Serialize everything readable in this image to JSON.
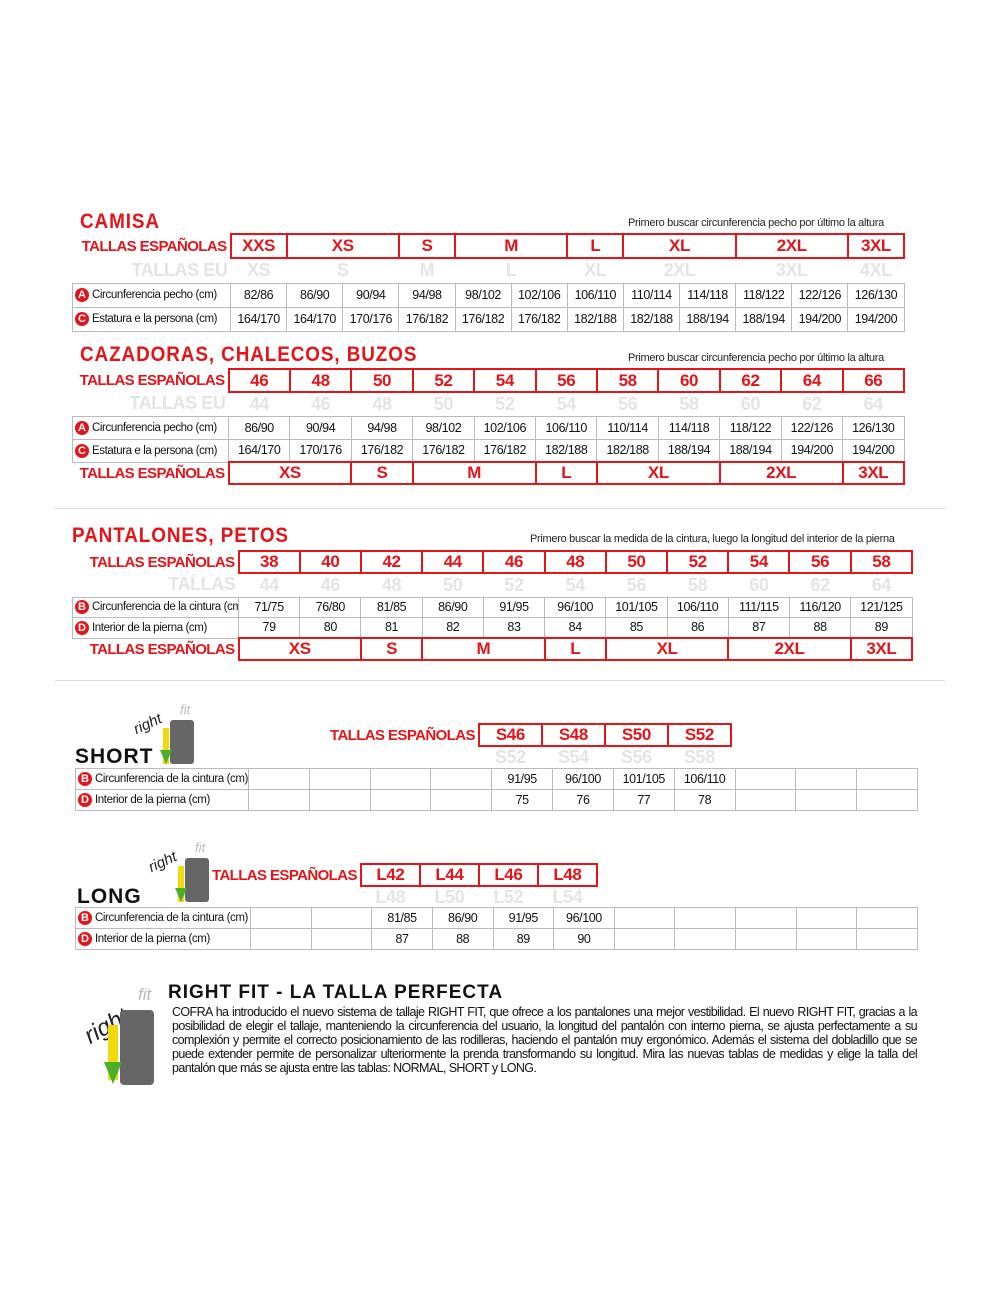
{
  "camisa": {
    "title": "CAMISA",
    "note": "Primero buscar circunferencia pecho por último la altura",
    "rows": [
      {
        "kind": "es",
        "label": "TALLAS ESPAÑOLAS",
        "cells": [
          {
            "t": "XXS",
            "span": 1
          },
          {
            "t": "XS",
            "span": 2
          },
          {
            "t": "S",
            "span": 1
          },
          {
            "t": "M",
            "span": 2
          },
          {
            "t": "L",
            "span": 1
          },
          {
            "t": "XL",
            "span": 2
          },
          {
            "t": "2XL",
            "span": 2
          },
          {
            "t": "3XL",
            "span": 1
          }
        ]
      },
      {
        "kind": "eu",
        "label": "TALLAS EU",
        "cells": [
          {
            "t": "XS",
            "span": 1
          },
          {
            "t": "S",
            "span": 2
          },
          {
            "t": "M",
            "span": 1
          },
          {
            "t": "L",
            "span": 2
          },
          {
            "t": "XL",
            "span": 1
          },
          {
            "t": "2XL",
            "span": 2
          },
          {
            "t": "3XL",
            "span": 2
          },
          {
            "t": "4XL",
            "span": 1
          }
        ]
      },
      {
        "kind": "data",
        "badge": "A",
        "label": "Circunferencia pecho (cm)",
        "cells": [
          "82/86",
          "86/90",
          "90/94",
          "94/98",
          "98/102",
          "102/106",
          "106/110",
          "110/114",
          "114/118",
          "118/122",
          "122/126",
          "126/130"
        ]
      },
      {
        "kind": "data",
        "badge": "C",
        "label": "Estatura e la persona (cm)",
        "cells": [
          "164/170",
          "164/170",
          "170/176",
          "176/182",
          "176/182",
          "176/182",
          "182/188",
          "182/188",
          "188/194",
          "188/194",
          "194/200",
          "194/200"
        ]
      }
    ]
  },
  "cazadoras": {
    "title": "CAZADORAS, CHALECOS, BUZOS",
    "note": "Primero buscar circunferencia pecho por último la altura",
    "rows": [
      {
        "kind": "es",
        "label": "TALLAS ESPAÑOLAS",
        "cells": [
          "46",
          "48",
          "50",
          "52",
          "54",
          "56",
          "58",
          "60",
          "62",
          "64",
          "66"
        ]
      },
      {
        "kind": "eu",
        "label": "TALLAS EU",
        "cells": [
          "44",
          "46",
          "48",
          "50",
          "52",
          "54",
          "56",
          "58",
          "60",
          "62",
          "64"
        ]
      },
      {
        "kind": "data",
        "badge": "A",
        "label": "Circunferencia pecho (cm)",
        "cells": [
          "86/90",
          "90/94",
          "94/98",
          "98/102",
          "102/106",
          "106/110",
          "110/114",
          "114/118",
          "118/122",
          "122/126",
          "126/130"
        ]
      },
      {
        "kind": "data",
        "badge": "C",
        "label": "Estatura e la persona (cm)",
        "cells": [
          "164/170",
          "170/176",
          "176/182",
          "176/182",
          "176/182",
          "182/188",
          "182/188",
          "188/194",
          "188/194",
          "194/200",
          "194/200"
        ]
      },
      {
        "kind": "es",
        "label": "TALLAS ESPAÑOLAS",
        "cells": [
          {
            "t": "XS",
            "span": 2
          },
          {
            "t": "S",
            "span": 1
          },
          {
            "t": "M",
            "span": 2
          },
          {
            "t": "L",
            "span": 1
          },
          {
            "t": "XL",
            "span": 2
          },
          {
            "t": "2XL",
            "span": 2
          },
          {
            "t": "3XL",
            "span": 1
          }
        ]
      }
    ]
  },
  "pantalones": {
    "title": "PANTALONES, PETOS",
    "note": "Primero buscar la medida de la cintura, luego la longitud del interior de la pierna",
    "rows": [
      {
        "kind": "es",
        "label": "TALLAS ESPAÑOLAS",
        "cells": [
          "38",
          "40",
          "42",
          "44",
          "46",
          "48",
          "50",
          "52",
          "54",
          "56",
          "58"
        ]
      },
      {
        "kind": "eu",
        "label": "TALLAS",
        "cells": [
          "44",
          "46",
          "48",
          "50",
          "52",
          "54",
          "56",
          "58",
          "60",
          "62",
          "64"
        ]
      },
      {
        "kind": "data",
        "badge": "B",
        "label": "Circunferencia de la cintura (cm)",
        "cells": [
          "71/75",
          "76/80",
          "81/85",
          "86/90",
          "91/95",
          "96/100",
          "101/105",
          "106/110",
          "111/115",
          "116/120",
          "121/125"
        ]
      },
      {
        "kind": "data",
        "badge": "D",
        "label": "Interior de la pierna (cm)",
        "cells": [
          "79",
          "80",
          "81",
          "82",
          "83",
          "84",
          "85",
          "86",
          "87",
          "88",
          "89"
        ]
      },
      {
        "kind": "es",
        "label": "TALLAS ESPAÑOLAS",
        "cells": [
          {
            "t": "XS",
            "span": 2
          },
          {
            "t": "S",
            "span": 1
          },
          {
            "t": "M",
            "span": 2
          },
          {
            "t": "L",
            "span": 1
          },
          {
            "t": "XL",
            "span": 2
          },
          {
            "t": "2XL",
            "span": 2
          },
          {
            "t": "3XL",
            "span": 1
          }
        ]
      }
    ]
  },
  "short": {
    "title": "SHORT",
    "logo": "rightfit",
    "header": {
      "label": "TALLAS ESPAÑOLAS",
      "es": [
        "S46",
        "S48",
        "S50",
        "S52"
      ],
      "eu": [
        "S52",
        "S54",
        "S56",
        "S58"
      ]
    },
    "rows": [
      {
        "badge": "B",
        "label": "Circunferencia de la cintura (cm)",
        "cells": [
          "",
          "",
          "",
          "",
          "91/95",
          "96/100",
          "101/105",
          "106/110",
          "",
          "",
          ""
        ]
      },
      {
        "badge": "D",
        "label": "Interior de la pierna (cm)",
        "cells": [
          "",
          "",
          "",
          "",
          "75",
          "76",
          "77",
          "78",
          "",
          "",
          ""
        ]
      }
    ]
  },
  "long": {
    "title": "LONG",
    "logo": "rightfit",
    "header": {
      "label": "TALLAS ESPAÑOLAS",
      "es": [
        "L42",
        "L44",
        "L46",
        "L48"
      ],
      "eu": [
        "L48",
        "L50",
        "L52",
        "L54"
      ]
    },
    "rows": [
      {
        "badge": "B",
        "label": "Circunferencia de la cintura (cm)",
        "cells": [
          "",
          "",
          "81/85",
          "86/90",
          "91/95",
          "96/100",
          "",
          "",
          "",
          "",
          ""
        ]
      },
      {
        "badge": "D",
        "label": "Interior de la pierna (cm)",
        "cells": [
          "",
          "",
          "87",
          "88",
          "89",
          "90",
          "",
          "",
          "",
          "",
          ""
        ]
      }
    ]
  },
  "rightfit": {
    "logo": "rightfit",
    "title": "RIGHT FIT - LA TALLA PERFECTA",
    "text": "COFRA ha introducido el nuevo sistema de tallaje RIGHT FIT, que ofrece a los pantalones una mejor vestibilidad. El nuevo RIGHT FIT, gracias a la posibilidad de elegir el tallaje, manteniendo la circunferencia del usuario, la longitud del pantalón con interno pierna, se ajusta perfectamente a su complexión y permite el correcto posicionamiento de las rodilleras, haciendo el pantalón muy ergonómico. Además el sistema del dobladillo que se puede extender permite de personalizar ulteriormente la prenda transformando su longitud. Mira las nuevas tablas de medidas y elige la talla del pantalón que más se ajusta entre las tablas: NORMAL, SHORT y LONG."
  },
  "colors": {
    "accent": "#e3151b",
    "eu_text": "#e4e4e4",
    "border": "#bbbbbb"
  }
}
